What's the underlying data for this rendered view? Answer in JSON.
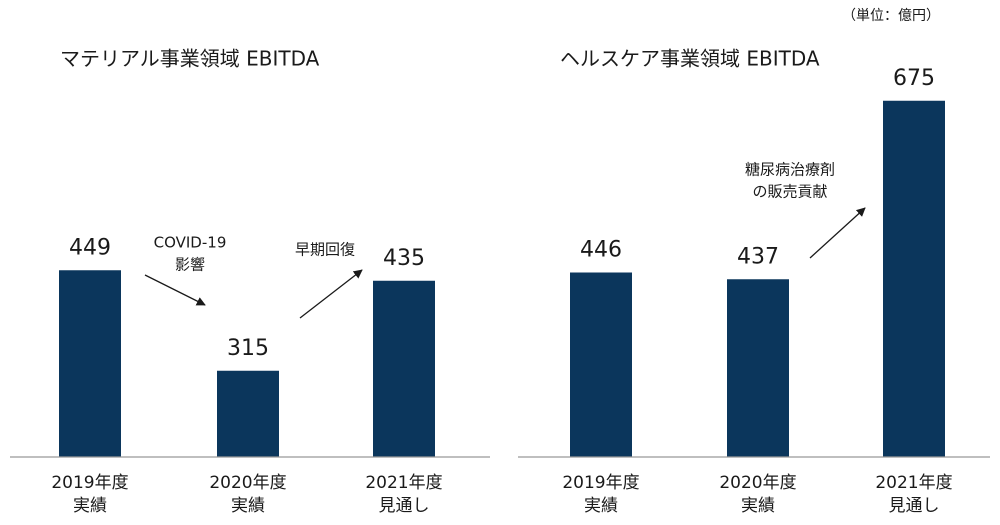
{
  "unit_note": "（単位：億円）",
  "chart_data": [
    {
      "type": "bar",
      "title": "マテリアル事業領域 EBITDA",
      "categories": [
        "2019年度",
        "2020年度",
        "2021年度"
      ],
      "category_sublabels": [
        "実績",
        "実績",
        "見通し"
      ],
      "values": [
        449,
        315,
        435
      ],
      "color": "#0b365c",
      "ylim": [
        200,
        700
      ],
      "annotations": [
        {
          "lines": [
            "COVID-19",
            "影響"
          ]
        },
        {
          "lines": [
            "早期回復"
          ]
        }
      ]
    },
    {
      "type": "bar",
      "title": "ヘルスケア事業領域 EBITDA",
      "categories": [
        "2019年度",
        "2020年度",
        "2021年度"
      ],
      "category_sublabels": [
        "実績",
        "実績",
        "見通し"
      ],
      "values": [
        446,
        437,
        675
      ],
      "color": "#0b365c",
      "ylim": [
        200,
        700
      ],
      "annotations": [
        {
          "lines": [
            "糖尿病治療剤",
            "の販売貢献"
          ]
        }
      ]
    }
  ]
}
